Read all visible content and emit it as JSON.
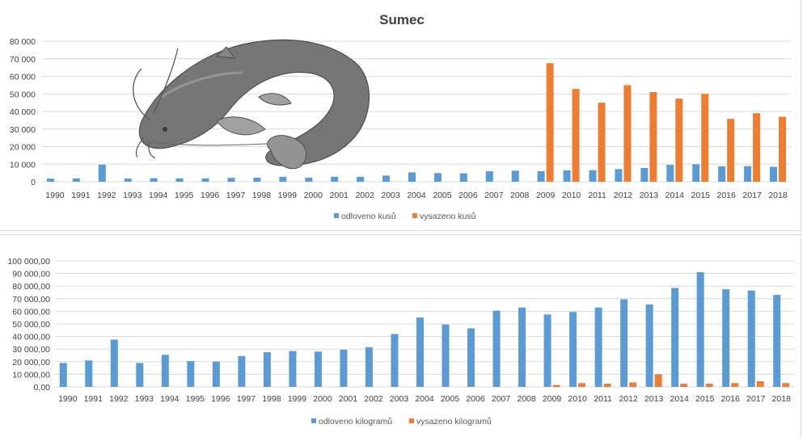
{
  "colors": {
    "odloveno": "#5b9bd5",
    "vysazeno": "#ed7d31",
    "grid": "#d9d9d9",
    "text": "#404040"
  },
  "chart_data": [
    {
      "type": "bar",
      "title": "Sumec",
      "image": "catfish-illustration",
      "categories": [
        "1990",
        "1991",
        "1992",
        "1993",
        "1994",
        "1995",
        "1996",
        "1997",
        "1998",
        "1999",
        "2000",
        "2001",
        "2002",
        "2003",
        "2004",
        "2005",
        "2006",
        "2007",
        "2008",
        "2009",
        "2010",
        "2011",
        "2012",
        "2013",
        "2014",
        "2015",
        "2016",
        "2017",
        "2018"
      ],
      "series": [
        {
          "name": "odloveno kusů",
          "color": "#5b9bd5",
          "values": [
            1800,
            1900,
            9700,
            1800,
            2000,
            1900,
            1900,
            2200,
            2300,
            2800,
            2300,
            2800,
            2800,
            3500,
            5300,
            4900,
            4800,
            6000,
            6300,
            6000,
            6500,
            6600,
            7200,
            7800,
            9600,
            9900,
            8800,
            8900,
            8500
          ]
        },
        {
          "name": "vysazeno kusů",
          "color": "#ed7d31",
          "values": [
            0,
            0,
            0,
            0,
            0,
            0,
            0,
            0,
            0,
            0,
            0,
            0,
            0,
            0,
            0,
            0,
            0,
            0,
            0,
            67500,
            52800,
            45000,
            55000,
            51000,
            47300,
            50000,
            35800,
            39000,
            37000
          ]
        }
      ],
      "yticks": [
        "0",
        "10 000",
        "20 000",
        "30 000",
        "40 000",
        "50 000",
        "60 000",
        "70 000",
        "80 000"
      ],
      "ylim": [
        0,
        80000
      ],
      "legend": "bottom",
      "grid": true
    },
    {
      "type": "bar",
      "title": "",
      "categories": [
        "1990",
        "1991",
        "1992",
        "1993",
        "1994",
        "1995",
        "1996",
        "1997",
        "1998",
        "1999",
        "2000",
        "2001",
        "2002",
        "2003",
        "2004",
        "2005",
        "2006",
        "2007",
        "2008",
        "2009",
        "2010",
        "2011",
        "2012",
        "2013",
        "2014",
        "2015",
        "2016",
        "2017",
        "2018"
      ],
      "series": [
        {
          "name": "odloveno kilogramů",
          "color": "#5b9bd5",
          "values": [
            19000,
            21000,
            37500,
            19000,
            25500,
            20500,
            20000,
            24500,
            27500,
            28500,
            28000,
            29500,
            31500,
            42000,
            55000,
            49500,
            46500,
            60500,
            63000,
            57500,
            59500,
            63000,
            69500,
            65500,
            78500,
            91000,
            77500,
            76500,
            73000
          ]
        },
        {
          "name": "vysazeno kilogramů",
          "color": "#ed7d31",
          "values": [
            0,
            0,
            0,
            0,
            0,
            0,
            0,
            0,
            0,
            0,
            0,
            0,
            0,
            0,
            0,
            0,
            0,
            0,
            0,
            1500,
            3000,
            2500,
            3500,
            10000,
            2500,
            2500,
            3000,
            4500,
            3000
          ]
        }
      ],
      "yticks": [
        "0,00",
        "10 000,00",
        "20 000,00",
        "30 000,00",
        "40 000,00",
        "50 000,00",
        "60 000,00",
        "70 000,00",
        "80 000,00",
        "90 000,00",
        "100 000,00"
      ],
      "ylim": [
        0,
        100000
      ],
      "legend": "bottom",
      "grid": true
    }
  ]
}
